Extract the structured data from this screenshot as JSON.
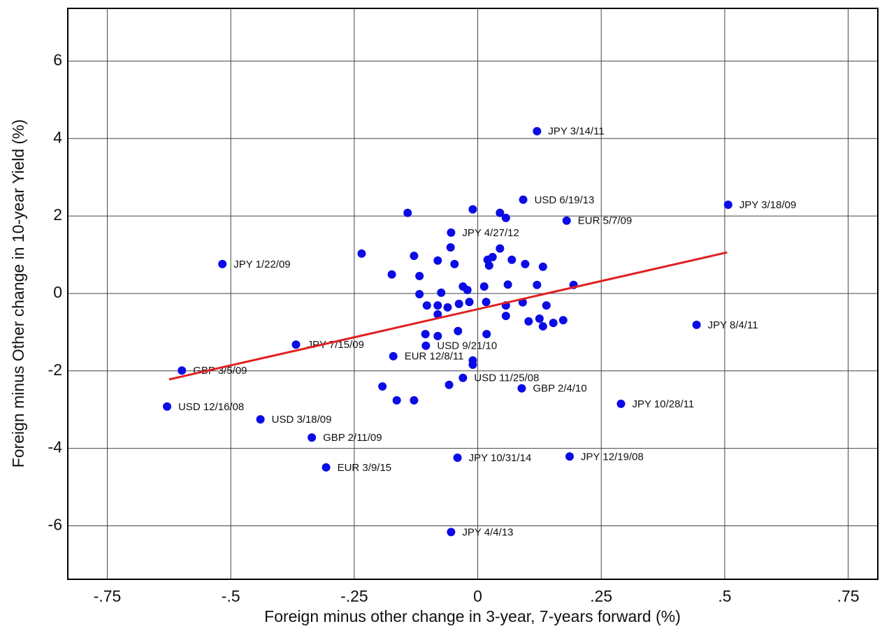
{
  "chart_data": {
    "type": "scatter",
    "xlabel": "Foreign minus other change in 3-year, 7-years forward (%)",
    "ylabel": "Foreign minus Other change in 10-year Yield (%)",
    "color": "#0b0be6",
    "grid": true,
    "xlim": [
      -0.83,
      0.81
    ],
    "ylim": [
      -7.38,
      7.36
    ],
    "xticks": [
      {
        "value": -0.75,
        "label": "-.75"
      },
      {
        "value": -0.5,
        "label": "-.5"
      },
      {
        "value": -0.25,
        "label": "-.25"
      },
      0,
      {
        "value": 0.25,
        "label": ".25"
      },
      {
        "value": 0.5,
        "label": ".5"
      },
      {
        "value": 0.75,
        "label": ".75"
      }
    ],
    "yticks": [
      -6,
      -4,
      -2,
      0,
      2,
      4,
      6
    ],
    "x": [
      0.12,
      0.092,
      0.507,
      0.18,
      -0.054,
      -0.517,
      -0.105,
      -0.368,
      0.443,
      -0.599,
      -0.171,
      -0.03,
      0.089,
      0.29,
      -0.629,
      -0.44,
      -0.336,
      -0.041,
      0.186,
      -0.307,
      -0.054,
      -0.142,
      -0.01,
      0.045,
      0.057,
      -0.055,
      0.045,
      -0.235,
      -0.129,
      -0.081,
      -0.047,
      0.02,
      0.03,
      0.069,
      0.096,
      0.132,
      -0.174,
      -0.118,
      -0.074,
      -0.118,
      -0.03,
      -0.021,
      0.013,
      0.061,
      0.12,
      -0.103,
      -0.081,
      -0.061,
      -0.081,
      -0.038,
      -0.017,
      0.017,
      0.057,
      0.091,
      0.057,
      0.103,
      0.125,
      0.132,
      0.153,
      0.173,
      -0.106,
      -0.04,
      -0.081,
      0.018,
      -0.193,
      -0.058,
      -0.01,
      -0.164,
      -0.129,
      -0.01,
      0.194,
      0.139,
      0.023
    ],
    "values": [
      4.19,
      2.42,
      2.29,
      1.88,
      1.57,
      0.76,
      -1.35,
      -1.32,
      -0.81,
      -1.99,
      -1.62,
      -2.18,
      -2.45,
      -2.85,
      -2.92,
      -3.25,
      -3.72,
      -4.24,
      -4.21,
      -4.49,
      -6.16,
      2.08,
      2.17,
      2.08,
      1.95,
      1.19,
      1.16,
      1.03,
      0.97,
      0.85,
      0.76,
      0.87,
      0.94,
      0.87,
      0.76,
      0.69,
      0.49,
      0.45,
      0.02,
      -0.02,
      0.18,
      0.09,
      0.18,
      0.23,
      0.22,
      -0.31,
      -0.31,
      -0.36,
      -0.54,
      -0.27,
      -0.22,
      -0.22,
      -0.31,
      -0.23,
      -0.58,
      -0.72,
      -0.65,
      -0.85,
      -0.76,
      -0.69,
      -1.05,
      -0.97,
      -1.1,
      -1.05,
      -2.4,
      -2.36,
      -1.73,
      -2.76,
      -2.76,
      -1.84,
      0.22,
      -0.31,
      0.72
    ],
    "labels": [
      "JPY 3/14/11",
      "USD 6/19/13",
      "JPY 3/18/09",
      "EUR 5/7/09",
      "JPY 4/27/12",
      "JPY 1/22/09",
      "USD 9/21/10",
      "JPY 7/15/09",
      "JPY 8/4/11",
      "GBP 3/5/09",
      "EUR 12/8/11",
      "USD 11/25/08",
      "GBP 2/4/10",
      "JPY 10/28/11",
      "USD 12/16/08",
      "USD 3/18/09",
      "GBP 2/11/09",
      "JPY 10/31/14",
      "JPY 12/19/08",
      "EUR 3/9/15",
      "JPY 4/4/13",
      null,
      null,
      null,
      null,
      null,
      null,
      null,
      null,
      null,
      null,
      null,
      null,
      null,
      null,
      null,
      null,
      null,
      null,
      null,
      null,
      null,
      null,
      null,
      null,
      null,
      null,
      null,
      null,
      null,
      null,
      null,
      null,
      null,
      null,
      null,
      null,
      null,
      null,
      null,
      null,
      null,
      null,
      null,
      null,
      null,
      null,
      null,
      null,
      null,
      null,
      null,
      null
    ],
    "fit_line": {
      "color": "#e02020",
      "x": [
        -0.625,
        0.505
      ],
      "y": [
        -2.22,
        1.06
      ]
    }
  }
}
